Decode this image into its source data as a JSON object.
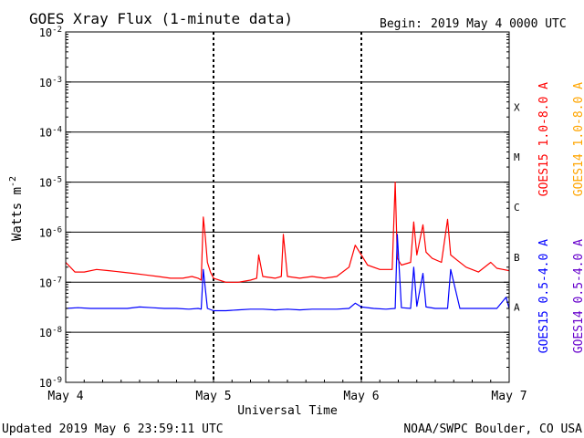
{
  "chart_data": {
    "type": "line",
    "title": "GOES Xray Flux (1-minute data)",
    "begin_label": "Begin:",
    "begin_value": "2019 May 4 0000 UTC",
    "xlabel": "Universal Time",
    "ylabel_prefix": "Watts m",
    "ylabel_exp": "-2",
    "y_scale": "log",
    "ylim": [
      1e-09,
      0.01
    ],
    "xlim": [
      "2019-05-04 00:00",
      "2019-05-07 00:00"
    ],
    "grid": true,
    "y_ticks": [
      {
        "value": 0.01,
        "mant": "10",
        "exp": "-2"
      },
      {
        "value": 0.001,
        "mant": "10",
        "exp": "-3"
      },
      {
        "value": 0.0001,
        "mant": "10",
        "exp": "-4"
      },
      {
        "value": 1e-05,
        "mant": "10",
        "exp": "-5"
      },
      {
        "value": 1e-06,
        "mant": "10",
        "exp": "-6"
      },
      {
        "value": 1e-07,
        "mant": "10",
        "exp": "-7"
      },
      {
        "value": 1e-08,
        "mant": "10",
        "exp": "-8"
      },
      {
        "value": 1e-09,
        "mant": "10",
        "exp": "-9"
      }
    ],
    "x_ticks": [
      {
        "value": "2019-05-04",
        "day": 0,
        "label": "May 4"
      },
      {
        "value": "2019-05-05",
        "day": 1,
        "label": "May 5"
      },
      {
        "value": "2019-05-06",
        "day": 2,
        "label": "May 6"
      },
      {
        "value": "2019-05-07",
        "day": 3,
        "label": "May 7"
      }
    ],
    "flare_classes": [
      {
        "label": "X",
        "value": 0.0001
      },
      {
        "label": "M",
        "value": 1e-05
      },
      {
        "label": "C",
        "value": 1e-06
      },
      {
        "label": "B",
        "value": 1e-07
      },
      {
        "label": "A",
        "value": 1e-08
      }
    ],
    "legend": [
      {
        "label": "GOES15 1.0-8.0 A",
        "color": "#ff0000"
      },
      {
        "label": "GOES14 1.0-8.0 A",
        "color": "#ffa500"
      },
      {
        "label": "GOES15 0.5-4.0 A",
        "color": "#0000ff"
      },
      {
        "label": "GOES14 0.5-4.0 A",
        "color": "#6600cc"
      }
    ],
    "series": [
      {
        "name": "GOES15 1.0-8.0 A",
        "color": "#ff0000",
        "x": [
          "2019-05-04 00:00",
          "2019-05-04 01:30",
          "2019-05-04 03:00",
          "2019-05-04 05:00",
          "2019-05-04 07:00",
          "2019-05-04 09:00",
          "2019-05-04 11:00",
          "2019-05-04 13:00",
          "2019-05-04 15:00",
          "2019-05-04 17:00",
          "2019-05-04 19:00",
          "2019-05-04 20:30",
          "2019-05-04 21:30",
          "2019-05-04 22:00",
          "2019-05-04 22:20",
          "2019-05-04 22:40",
          "2019-05-04 23:00",
          "2019-05-04 23:30",
          "2019-05-05 00:00",
          "2019-05-05 02:00",
          "2019-05-05 04:00",
          "2019-05-05 06:00",
          "2019-05-05 07:00",
          "2019-05-05 07:20",
          "2019-05-05 08:00",
          "2019-05-05 10:00",
          "2019-05-05 11:00",
          "2019-05-05 11:20",
          "2019-05-05 12:00",
          "2019-05-05 14:00",
          "2019-05-05 16:00",
          "2019-05-05 18:00",
          "2019-05-05 20:00",
          "2019-05-05 22:00",
          "2019-05-05 23:00",
          "2019-05-06 00:00",
          "2019-05-06 01:00",
          "2019-05-06 03:00",
          "2019-05-06 05:00",
          "2019-05-06 05:30",
          "2019-05-06 05:50",
          "2019-05-06 06:30",
          "2019-05-06 08:00",
          "2019-05-06 08:30",
          "2019-05-06 09:00",
          "2019-05-06 10:00",
          "2019-05-06 10:30",
          "2019-05-06 11:30",
          "2019-05-06 13:00",
          "2019-05-06 14:00",
          "2019-05-06 14:30",
          "2019-05-06 15:30",
          "2019-05-06 17:00",
          "2019-05-06 19:00",
          "2019-05-06 21:00",
          "2019-05-06 22:00",
          "2019-05-06 23:00",
          "2019-05-07 00:00"
        ],
        "y": [
          2.5e-07,
          1.6e-07,
          1.6e-07,
          1.8e-07,
          1.7e-07,
          1.6e-07,
          1.5e-07,
          1.4e-07,
          1.3e-07,
          1.2e-07,
          1.2e-07,
          1.3e-07,
          1.2e-07,
          1.1e-07,
          2e-06,
          8e-07,
          2.5e-07,
          1.6e-07,
          1.2e-07,
          1e-07,
          1e-07,
          1.1e-07,
          1.2e-07,
          3.5e-07,
          1.3e-07,
          1.2e-07,
          1.3e-07,
          9e-07,
          1.3e-07,
          1.2e-07,
          1.3e-07,
          1.2e-07,
          1.3e-07,
          2e-07,
          5.5e-07,
          3.5e-07,
          2.2e-07,
          1.8e-07,
          1.8e-07,
          1e-05,
          3e-07,
          2.2e-07,
          2.5e-07,
          1.6e-06,
          3.5e-07,
          1.4e-06,
          4e-07,
          3e-07,
          2.5e-07,
          1.8e-06,
          3.5e-07,
          2.8e-07,
          2e-07,
          1.6e-07,
          2.5e-07,
          1.9e-07,
          1.8e-07,
          1.7e-07
        ]
      },
      {
        "name": "GOES15 0.5-4.0 A",
        "color": "#0000ff",
        "x": [
          "2019-05-04 00:00",
          "2019-05-04 02:00",
          "2019-05-04 04:00",
          "2019-05-04 06:00",
          "2019-05-04 08:00",
          "2019-05-04 10:00",
          "2019-05-04 12:00",
          "2019-05-04 14:00",
          "2019-05-04 16:00",
          "2019-05-04 18:00",
          "2019-05-04 20:00",
          "2019-05-04 21:30",
          "2019-05-04 22:00",
          "2019-05-04 22:20",
          "2019-05-04 23:00",
          "2019-05-05 00:00",
          "2019-05-05 02:00",
          "2019-05-05 04:00",
          "2019-05-05 06:00",
          "2019-05-05 08:00",
          "2019-05-05 10:00",
          "2019-05-05 12:00",
          "2019-05-05 14:00",
          "2019-05-05 16:00",
          "2019-05-05 18:00",
          "2019-05-05 20:00",
          "2019-05-05 22:00",
          "2019-05-05 23:00",
          "2019-05-06 00:00",
          "2019-05-06 02:00",
          "2019-05-06 04:00",
          "2019-05-06 05:30",
          "2019-05-06 05:50",
          "2019-05-06 06:30",
          "2019-05-06 08:00",
          "2019-05-06 08:30",
          "2019-05-06 09:00",
          "2019-05-06 10:00",
          "2019-05-06 10:30",
          "2019-05-06 12:00",
          "2019-05-06 14:00",
          "2019-05-06 14:30",
          "2019-05-06 16:00",
          "2019-05-06 18:00",
          "2019-05-06 20:00",
          "2019-05-06 22:00",
          "2019-05-06 23:30",
          "2019-05-07 00:00"
        ],
        "y": [
          3e-08,
          3.1e-08,
          3e-08,
          3e-08,
          3e-08,
          3e-08,
          3.2e-08,
          3.1e-08,
          3e-08,
          3e-08,
          2.9e-08,
          3e-08,
          2.9e-08,
          1.8e-07,
          3e-08,
          2.7e-08,
          2.7e-08,
          2.8e-08,
          2.9e-08,
          2.9e-08,
          2.8e-08,
          2.9e-08,
          2.8e-08,
          2.9e-08,
          2.9e-08,
          2.9e-08,
          3e-08,
          3.8e-08,
          3.2e-08,
          3e-08,
          2.9e-08,
          3e-08,
          9e-07,
          3.1e-08,
          3e-08,
          2e-07,
          3.3e-08,
          1.5e-07,
          3.2e-08,
          3e-08,
          3e-08,
          1.8e-07,
          3e-08,
          3e-08,
          3e-08,
          3e-08,
          5e-08,
          3e-08
        ]
      }
    ]
  },
  "footer": {
    "updated": "Updated 2019 May  6 23:59:11 UTC",
    "credit": "NOAA/SWPC Boulder, CO USA"
  }
}
